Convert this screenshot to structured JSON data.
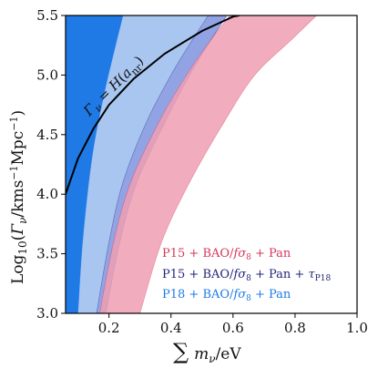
{
  "chart_data": {
    "type": "area",
    "xlabel": "∑ m_ν/eV",
    "ylabel": "Log10(Γ_ν/kms⁻¹Mpc⁻¹)",
    "xlim": [
      0.06,
      1.0
    ],
    "ylim": [
      3.0,
      5.5
    ],
    "x_ticks": [
      "0.2",
      "0.4",
      "0.6",
      "0.8",
      "1.0"
    ],
    "x_tick_values": [
      0.2,
      0.4,
      0.6,
      0.8,
      1.0
    ],
    "y_ticks": [
      "3.0",
      "3.5",
      "4.0",
      "4.5",
      "5.0",
      "5.5"
    ],
    "y_tick_values": [
      3.0,
      3.5,
      4.0,
      4.5,
      5.0,
      5.5
    ],
    "grid": false,
    "legend_position": "bottom-right",
    "series": [
      {
        "name": "P18 + BAO/fσ8 + Pan",
        "color": "#1e7be6",
        "band": "2σ",
        "fill_color": "#1f7ae6",
        "upper": [
          [
            0.06,
            3.0
          ],
          [
            0.06,
            5.5
          ],
          [
            0.245,
            5.5
          ]
        ],
        "lower": [
          [
            0.06,
            3.0
          ],
          [
            0.15,
            3.0
          ],
          [
            0.195,
            3.6
          ],
          [
            0.255,
            4.1
          ],
          [
            0.33,
            4.55
          ],
          [
            0.43,
            5.0
          ],
          [
            0.51,
            5.3
          ],
          [
            0.56,
            5.5
          ]
        ]
      },
      {
        "name": "P18 + BAO/fσ8 + Pan",
        "color": "#1e7be6",
        "band": "1σ",
        "fill_color": "#a9c6f1",
        "upper": [
          [
            0.1,
            3.0
          ],
          [
            0.115,
            3.6
          ],
          [
            0.145,
            4.3
          ],
          [
            0.185,
            4.85
          ],
          [
            0.245,
            5.5
          ]
        ],
        "lower": [
          [
            0.19,
            3.0
          ],
          [
            0.235,
            3.6
          ],
          [
            0.29,
            4.1
          ],
          [
            0.38,
            4.6
          ],
          [
            0.46,
            5.0
          ],
          [
            0.53,
            5.3
          ],
          [
            0.58,
            5.5
          ]
        ]
      },
      {
        "name": "P15 + BAO/fσ8 + Pan + τ_P18",
        "color": "#23237a",
        "band": "2σ",
        "fill_color": "#7f86d8",
        "upper": [
          [
            0.16,
            3.0
          ],
          [
            0.2,
            3.6
          ],
          [
            0.245,
            4.1
          ],
          [
            0.32,
            4.6
          ],
          [
            0.4,
            5.0
          ],
          [
            0.47,
            5.3
          ],
          [
            0.52,
            5.5
          ]
        ],
        "lower": [
          [
            0.19,
            3.0
          ],
          [
            0.235,
            3.6
          ],
          [
            0.29,
            4.1
          ],
          [
            0.38,
            4.6
          ],
          [
            0.46,
            5.0
          ],
          [
            0.53,
            5.3
          ],
          [
            0.58,
            5.5
          ]
        ]
      },
      {
        "name": "P15 + BAO/fσ8 + Pan",
        "color": "#d6365a",
        "band": "2σ",
        "fill_color": "#ef9fb3",
        "upper": [
          [
            0.17,
            3.0
          ],
          [
            0.215,
            3.6
          ],
          [
            0.27,
            4.1
          ],
          [
            0.36,
            4.6
          ],
          [
            0.45,
            5.0
          ],
          [
            0.53,
            5.3
          ],
          [
            0.59,
            5.5
          ]
        ],
        "lower": [
          [
            0.3,
            3.0
          ],
          [
            0.37,
            3.6
          ],
          [
            0.46,
            4.1
          ],
          [
            0.57,
            4.6
          ],
          [
            0.67,
            5.0
          ],
          [
            0.79,
            5.3
          ],
          [
            0.87,
            5.5
          ]
        ]
      }
    ],
    "curve": {
      "label": "Γ_ν = H(a_nr)",
      "color": "#000000",
      "points": [
        [
          0.06,
          4.0
        ],
        [
          0.1,
          4.3
        ],
        [
          0.15,
          4.55
        ],
        [
          0.2,
          4.75
        ],
        [
          0.28,
          4.97
        ],
        [
          0.38,
          5.18
        ],
        [
          0.5,
          5.37
        ],
        [
          0.6,
          5.49
        ],
        [
          0.62,
          5.5
        ]
      ]
    }
  },
  "legend": [
    {
      "text": "P15 + BAO/fσ8 + Pan",
      "color": "#d6365a"
    },
    {
      "text": "P15 + BAO/fσ8 + Pan + τP18",
      "color": "#23237a"
    },
    {
      "text": "P18 + BAO/fσ8 + Pan",
      "color": "#1e7be6"
    }
  ]
}
